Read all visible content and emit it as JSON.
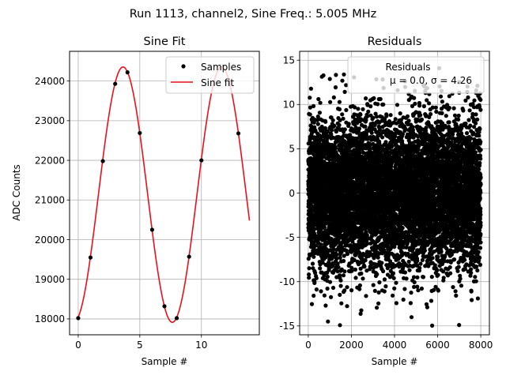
{
  "suptitle": "Run 1113, channel2, Sine Freq.: 5.005 MHz",
  "chart_data": [
    {
      "type": "line",
      "title": "Sine Fit",
      "xlabel": "Sample #",
      "ylabel": "ADC Counts",
      "xlim": [
        -0.7,
        14.7
      ],
      "ylim": [
        17600,
        24750
      ],
      "xticks": [
        0,
        5,
        10
      ],
      "yticks": [
        18000,
        19000,
        20000,
        21000,
        22000,
        23000,
        24000
      ],
      "grid": true,
      "legend": {
        "placement": "top-right",
        "entries": [
          "Samples",
          "Sine fit"
        ]
      },
      "series": [
        {
          "name": "Samples",
          "kind": "scatter",
          "color": "#000000",
          "x": [
            0,
            1,
            2,
            3,
            4,
            5,
            6,
            7,
            8,
            9,
            10,
            13
          ],
          "y": [
            18020,
            19550,
            21980,
            23930,
            24220,
            22690,
            20250,
            18320,
            18020,
            19570,
            22000,
            22680
          ]
        },
        {
          "name": "Sine fit",
          "kind": "line",
          "color": "#e8111b",
          "function": {
            "offset": 21135,
            "amplitude": 3220,
            "period": 8.0,
            "phase_sample": 1.64,
            "x_start": 0,
            "x_end": 13.9
          }
        }
      ]
    },
    {
      "type": "scatter",
      "title": "Residuals",
      "xlabel": "Sample #",
      "ylabel": "",
      "xlim": [
        -400,
        8400
      ],
      "ylim": [
        -16,
        16
      ],
      "xticks": [
        0,
        2000,
        4000,
        6000,
        8000
      ],
      "yticks": [
        -15,
        -10,
        -5,
        0,
        5,
        10,
        15
      ],
      "grid": true,
      "legend": {
        "placement": "top-right",
        "entries": [
          "Residuals"
        ],
        "stats_text": "μ = 0.0, σ = 4.26"
      },
      "series": [
        {
          "name": "Residuals",
          "color": "#000000",
          "n_points": 8000,
          "mean": 0.0,
          "sigma": 4.26,
          "x_range": [
            0,
            8000
          ],
          "y_range": [
            -15.2,
            14.1
          ]
        }
      ]
    }
  ]
}
